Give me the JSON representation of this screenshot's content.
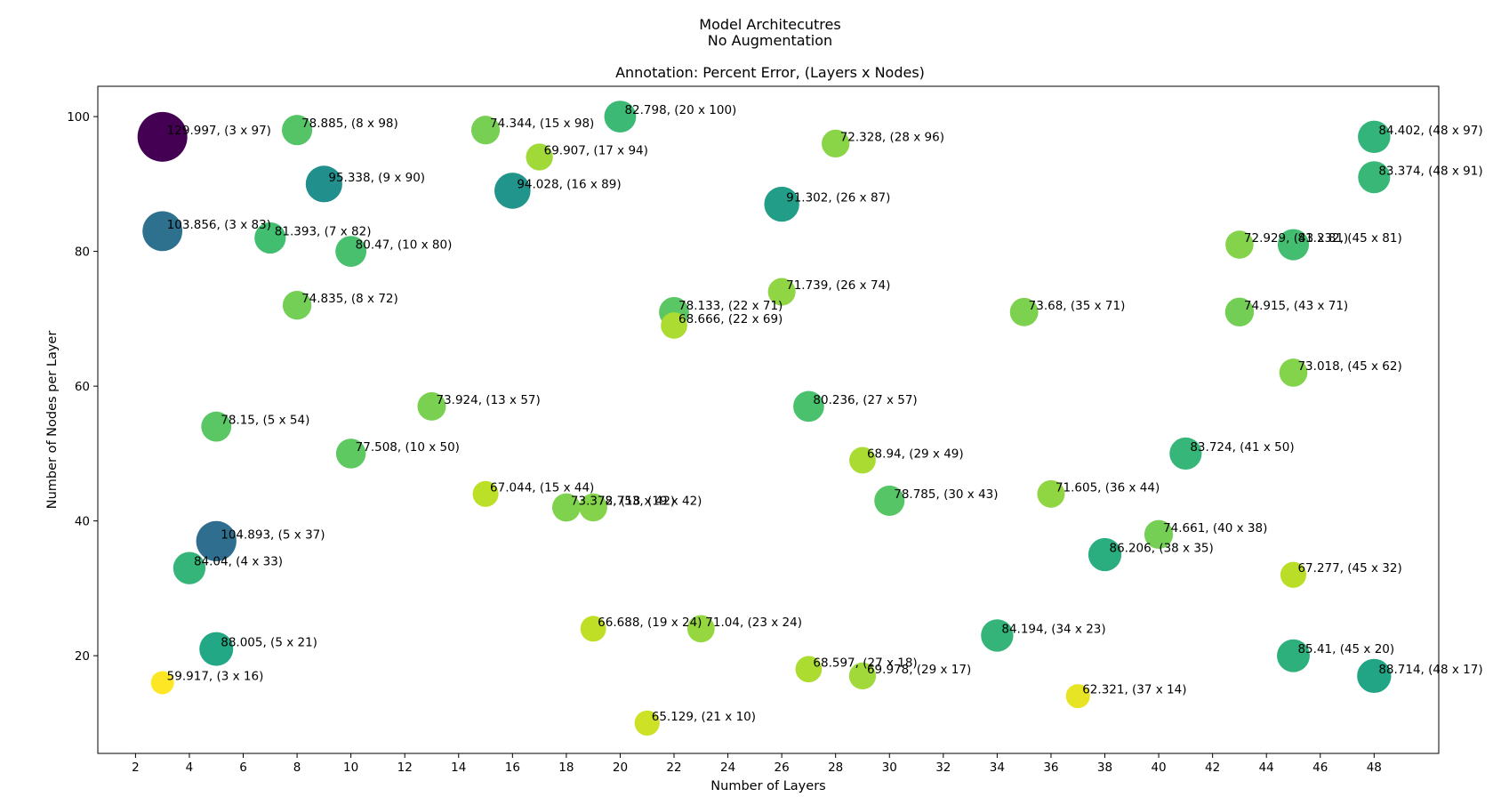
{
  "chart_data": {
    "type": "scatter",
    "title_lines": [
      "Model Architecutres",
      "No Augmentation",
      "",
      "Annotation: Percent Error, (Layers x Nodes)"
    ],
    "xlabel": "Number of Layers",
    "ylabel": "Number of Nodes per Layer",
    "xlim": [
      0.6,
      50.4
    ],
    "ylim": [
      5.5,
      104.5
    ],
    "xticks": [
      2,
      4,
      6,
      8,
      10,
      12,
      14,
      16,
      18,
      20,
      22,
      24,
      26,
      28,
      30,
      32,
      34,
      36,
      38,
      40,
      42,
      44,
      46,
      48
    ],
    "yticks": [
      20,
      40,
      60,
      80,
      100
    ],
    "color_range": [
      59.917,
      129.997
    ],
    "grid": false,
    "points": [
      {
        "x": 3,
        "y": 97,
        "error": 129.997,
        "label": "129.997, (3 x 97)"
      },
      {
        "x": 8,
        "y": 98,
        "error": 78.885,
        "label": "78.885, (8 x 98)"
      },
      {
        "x": 15,
        "y": 98,
        "error": 74.344,
        "label": "74.344, (15 x 98)"
      },
      {
        "x": 20,
        "y": 100,
        "error": 82.798,
        "label": "82.798, (20 x 100)"
      },
      {
        "x": 17,
        "y": 94,
        "error": 69.907,
        "label": "69.907, (17 x 94)"
      },
      {
        "x": 28,
        "y": 96,
        "error": 72.328,
        "label": "72.328, (28 x 96)"
      },
      {
        "x": 48,
        "y": 97,
        "error": 84.402,
        "label": "84.402, (48 x 97)"
      },
      {
        "x": 9,
        "y": 90,
        "error": 95.338,
        "label": "95.338, (9 x 90)"
      },
      {
        "x": 16,
        "y": 89,
        "error": 94.028,
        "label": "94.028, (16 x 89)"
      },
      {
        "x": 26,
        "y": 87,
        "error": 91.302,
        "label": "91.302, (26 x 87)"
      },
      {
        "x": 48,
        "y": 91,
        "error": 83.374,
        "label": "83.374, (48 x 91)"
      },
      {
        "x": 3,
        "y": 83,
        "error": 103.856,
        "label": "103.856, (3 x 83)"
      },
      {
        "x": 7,
        "y": 82,
        "error": 81.393,
        "label": "81.393, (7 x 82)"
      },
      {
        "x": 10,
        "y": 80,
        "error": 80.47,
        "label": "80.47, (10 x 80)"
      },
      {
        "x": 43,
        "y": 81,
        "error": 72.929,
        "label": "72.929, (43 x 81)"
      },
      {
        "x": 45,
        "y": 81,
        "error": 81.232,
        "label": "81.232, (45 x 81)"
      },
      {
        "x": 8,
        "y": 72,
        "error": 74.835,
        "label": "74.835, (8 x 72)"
      },
      {
        "x": 26,
        "y": 74,
        "error": 71.739,
        "label": "71.739, (26 x 74)"
      },
      {
        "x": 22,
        "y": 71,
        "error": 78.133,
        "label": "78.133, (22 x 71)"
      },
      {
        "x": 22,
        "y": 69,
        "error": 68.666,
        "label": "68.666, (22 x 69)"
      },
      {
        "x": 35,
        "y": 71,
        "error": 73.68,
        "label": "73.68, (35 x 71)"
      },
      {
        "x": 43,
        "y": 71,
        "error": 74.915,
        "label": "74.915, (43 x 71)"
      },
      {
        "x": 45,
        "y": 62,
        "error": 73.018,
        "label": "73.018, (45 x 62)"
      },
      {
        "x": 13,
        "y": 57,
        "error": 73.924,
        "label": "73.924, (13 x 57)"
      },
      {
        "x": 27,
        "y": 57,
        "error": 80.236,
        "label": "80.236, (27 x 57)"
      },
      {
        "x": 5,
        "y": 54,
        "error": 78.15,
        "label": "78.15, (5 x 54)"
      },
      {
        "x": 10,
        "y": 50,
        "error": 77.508,
        "label": "77.508, (10 x 50)"
      },
      {
        "x": 29,
        "y": 49,
        "error": 68.94,
        "label": "68.94, (29 x 49)"
      },
      {
        "x": 41,
        "y": 50,
        "error": 83.724,
        "label": "83.724, (41 x 50)"
      },
      {
        "x": 15,
        "y": 44,
        "error": 67.044,
        "label": "67.044, (15 x 44)"
      },
      {
        "x": 18,
        "y": 42,
        "error": 73.378,
        "label": "73.378, (18 x 42)"
      },
      {
        "x": 19,
        "y": 42,
        "error": 72.753,
        "label": "72.753, (19 x 42)"
      },
      {
        "x": 30,
        "y": 43,
        "error": 78.785,
        "label": "78.785, (30 x 43)"
      },
      {
        "x": 36,
        "y": 44,
        "error": 71.605,
        "label": "71.605, (36 x 44)"
      },
      {
        "x": 5,
        "y": 37,
        "error": 104.893,
        "label": "104.893, (5 x 37)"
      },
      {
        "x": 40,
        "y": 38,
        "error": 74.661,
        "label": "74.661, (40 x 38)"
      },
      {
        "x": 38,
        "y": 35,
        "error": 86.206,
        "label": "86.206, (38 x 35)"
      },
      {
        "x": 4,
        "y": 33,
        "error": 84.04,
        "label": "84.04, (4 x 33)"
      },
      {
        "x": 45,
        "y": 32,
        "error": 67.277,
        "label": "67.277, (45 x 32)"
      },
      {
        "x": 19,
        "y": 24,
        "error": 66.688,
        "label": "66.688, (19 x 24)"
      },
      {
        "x": 23,
        "y": 24,
        "error": 71.04,
        "label": "71.04, (23 x 24)"
      },
      {
        "x": 34,
        "y": 23,
        "error": 84.194,
        "label": "84.194, (34 x 23)"
      },
      {
        "x": 5,
        "y": 21,
        "error": 88.005,
        "label": "88.005, (5 x 21)"
      },
      {
        "x": 45,
        "y": 20,
        "error": 85.41,
        "label": "85.41, (45 x 20)"
      },
      {
        "x": 27,
        "y": 18,
        "error": 68.597,
        "label": "68.597, (27 x 18)"
      },
      {
        "x": 29,
        "y": 17,
        "error": 69.978,
        "label": "69.978, (29 x 17)"
      },
      {
        "x": 48,
        "y": 17,
        "error": 88.714,
        "label": "88.714, (48 x 17)"
      },
      {
        "x": 3,
        "y": 16,
        "error": 59.917,
        "label": "59.917, (3 x 16)"
      },
      {
        "x": 37,
        "y": 14,
        "error": 62.321,
        "label": "62.321, (37 x 14)"
      },
      {
        "x": 21,
        "y": 10,
        "error": 65.129,
        "label": "65.129, (21 x 10)"
      }
    ]
  }
}
